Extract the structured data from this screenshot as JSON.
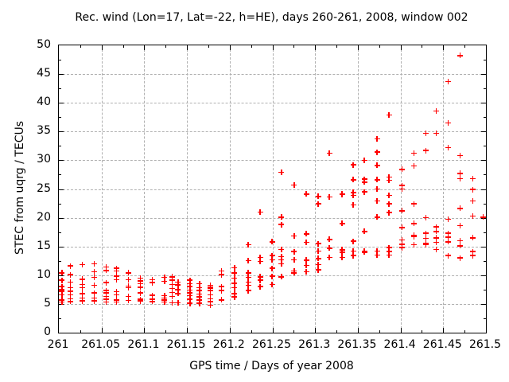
{
  "title": "Rec. wind (Lon=17, Lat=-22, h=HE), days 260-261, 2008, window 002",
  "chart_data": {
    "type": "scatter",
    "title": "Rec. wind (Lon=17, Lat=-22, h=HE), days 260-261, 2008, window 002",
    "xlabel": "GPS time / Days of year 2008",
    "ylabel": "STEC from uqrg / TECUs",
    "xlim": [
      261,
      261.5
    ],
    "ylim": [
      0,
      50
    ],
    "grid": true,
    "legend": "none",
    "marker": "plus",
    "marker_color": "#ff0000",
    "grid_color": "#b0b0b0",
    "border_color": "#000000",
    "xticks": [
      261,
      261.05,
      261.1,
      261.15,
      261.2,
      261.25,
      261.3,
      261.35,
      261.4,
      261.45,
      261.5
    ],
    "xtick_labels": [
      "261",
      "261.05",
      "261.1",
      "261.15",
      "261.2",
      "261.25",
      "261.3",
      "261.35",
      "261.4",
      "261.45",
      "261.5"
    ],
    "yticks": [
      0,
      5,
      10,
      15,
      20,
      25,
      30,
      35,
      40,
      45,
      50
    ],
    "ytick_labels": [
      "0",
      "5",
      "10",
      "15",
      "20",
      "25",
      "30",
      "35",
      "40",
      "45",
      "50"
    ],
    "minor_x_step": 0.025,
    "minor_y_step": 2.5,
    "points": [
      [
        261.005,
        10.2
      ],
      [
        261.005,
        8.9
      ],
      [
        261.005,
        7.8
      ],
      [
        261.005,
        7.3
      ],
      [
        261.005,
        7.0
      ],
      [
        261.005,
        6.4
      ],
      [
        261.005,
        5.5
      ],
      [
        261.005,
        5.1
      ],
      [
        261.015,
        11.4
      ],
      [
        261.015,
        9.9
      ],
      [
        261.015,
        8.6
      ],
      [
        261.015,
        7.6
      ],
      [
        261.015,
        7.0
      ],
      [
        261.015,
        6.4
      ],
      [
        261.015,
        5.7
      ],
      [
        261.015,
        5.2
      ],
      [
        261.029,
        11.6
      ],
      [
        261.029,
        9.1
      ],
      [
        261.029,
        8.2
      ],
      [
        261.029,
        7.6
      ],
      [
        261.029,
        6.6
      ],
      [
        261.029,
        5.8
      ],
      [
        261.029,
        5.3
      ],
      [
        261.043,
        11.8
      ],
      [
        261.043,
        10.4
      ],
      [
        261.043,
        9.4
      ],
      [
        261.043,
        8.0
      ],
      [
        261.043,
        6.7
      ],
      [
        261.043,
        5.8
      ],
      [
        261.043,
        5.3
      ],
      [
        261.057,
        11.2
      ],
      [
        261.057,
        10.6
      ],
      [
        261.057,
        8.5
      ],
      [
        261.057,
        7.1
      ],
      [
        261.057,
        6.7
      ],
      [
        261.057,
        6.1
      ],
      [
        261.057,
        5.6
      ],
      [
        261.057,
        5.1
      ],
      [
        261.069,
        11.0
      ],
      [
        261.069,
        10.5
      ],
      [
        261.069,
        9.6
      ],
      [
        261.069,
        9.0
      ],
      [
        261.069,
        6.9
      ],
      [
        261.069,
        6.4
      ],
      [
        261.069,
        5.5
      ],
      [
        261.069,
        5.1
      ],
      [
        261.083,
        10.2
      ],
      [
        261.083,
        9.0
      ],
      [
        261.083,
        7.9
      ],
      [
        261.083,
        7.6
      ],
      [
        261.083,
        6.1
      ],
      [
        261.083,
        5.4
      ],
      [
        261.097,
        9.3
      ],
      [
        261.097,
        8.8
      ],
      [
        261.097,
        8.3
      ],
      [
        261.097,
        7.7
      ],
      [
        261.097,
        6.7
      ],
      [
        261.097,
        5.6
      ],
      [
        261.097,
        5.3
      ],
      [
        261.111,
        9.0
      ],
      [
        261.111,
        8.5
      ],
      [
        261.111,
        6.3
      ],
      [
        261.111,
        5.6
      ],
      [
        261.111,
        5.2
      ],
      [
        261.125,
        9.4
      ],
      [
        261.125,
        8.7
      ],
      [
        261.125,
        6.2
      ],
      [
        261.125,
        5.8
      ],
      [
        261.125,
        5.5
      ],
      [
        261.125,
        5.1
      ],
      [
        261.134,
        9.5
      ],
      [
        261.134,
        8.9
      ],
      [
        261.134,
        8.2
      ],
      [
        261.134,
        7.5
      ],
      [
        261.134,
        6.8
      ],
      [
        261.134,
        6.1
      ],
      [
        261.134,
        5.0
      ],
      [
        261.141,
        8.6
      ],
      [
        261.141,
        8.1
      ],
      [
        261.141,
        7.3
      ],
      [
        261.141,
        6.6
      ],
      [
        261.141,
        5.0
      ],
      [
        261.155,
        8.9
      ],
      [
        261.155,
        8.3
      ],
      [
        261.155,
        7.8
      ],
      [
        261.155,
        7.2
      ],
      [
        261.155,
        6.7
      ],
      [
        261.155,
        6.2
      ],
      [
        261.155,
        5.6
      ],
      [
        261.155,
        4.9
      ],
      [
        261.166,
        8.3
      ],
      [
        261.166,
        7.6
      ],
      [
        261.166,
        7.1
      ],
      [
        261.166,
        6.5
      ],
      [
        261.166,
        6.0
      ],
      [
        261.166,
        5.5
      ],
      [
        261.166,
        4.9
      ],
      [
        261.179,
        8.0
      ],
      [
        261.179,
        7.7
      ],
      [
        261.179,
        7.5
      ],
      [
        261.179,
        7.1
      ],
      [
        261.179,
        6.4
      ],
      [
        261.179,
        5.7
      ],
      [
        261.179,
        5.2
      ],
      [
        261.179,
        4.6
      ],
      [
        261.192,
        10.5
      ],
      [
        261.192,
        9.9
      ],
      [
        261.192,
        7.8
      ],
      [
        261.192,
        7.1
      ],
      [
        261.192,
        5.5
      ],
      [
        261.207,
        11.1
      ],
      [
        261.207,
        10.2
      ],
      [
        261.207,
        9.3
      ],
      [
        261.207,
        8.4
      ],
      [
        261.207,
        7.6
      ],
      [
        261.207,
        6.6
      ],
      [
        261.207,
        6.0
      ],
      [
        261.223,
        15.1
      ],
      [
        261.223,
        12.3
      ],
      [
        261.223,
        10.2
      ],
      [
        261.223,
        9.4
      ],
      [
        261.223,
        8.6
      ],
      [
        261.223,
        8.0
      ],
      [
        261.223,
        7.1
      ],
      [
        261.237,
        20.8
      ],
      [
        261.237,
        12.9
      ],
      [
        261.237,
        12.2
      ],
      [
        261.237,
        9.5
      ],
      [
        261.237,
        8.9
      ],
      [
        261.237,
        7.8
      ],
      [
        261.251,
        15.6
      ],
      [
        261.251,
        13.2
      ],
      [
        261.251,
        12.5
      ],
      [
        261.251,
        11.0
      ],
      [
        261.251,
        9.6
      ],
      [
        261.251,
        8.2
      ],
      [
        261.262,
        27.7
      ],
      [
        261.262,
        19.9
      ],
      [
        261.262,
        18.6
      ],
      [
        261.262,
        14.3
      ],
      [
        261.262,
        13.0
      ],
      [
        261.262,
        12.5
      ],
      [
        261.262,
        11.8
      ],
      [
        261.262,
        9.5
      ],
      [
        261.277,
        25.5
      ],
      [
        261.277,
        16.6
      ],
      [
        261.277,
        13.9
      ],
      [
        261.277,
        12.5
      ],
      [
        261.277,
        10.5
      ],
      [
        261.277,
        10.2
      ],
      [
        261.291,
        23.9
      ],
      [
        261.291,
        17.0
      ],
      [
        261.291,
        15.5
      ],
      [
        261.291,
        12.4
      ],
      [
        261.291,
        11.5
      ],
      [
        261.291,
        10.4
      ],
      [
        261.305,
        23.5
      ],
      [
        261.305,
        22.2
      ],
      [
        261.305,
        15.3
      ],
      [
        261.305,
        14.0
      ],
      [
        261.305,
        12.7
      ],
      [
        261.305,
        11.6
      ],
      [
        261.305,
        10.7
      ],
      [
        261.318,
        31.0
      ],
      [
        261.318,
        23.4
      ],
      [
        261.318,
        16.0
      ],
      [
        261.318,
        14.5
      ],
      [
        261.318,
        12.9
      ],
      [
        261.333,
        23.9
      ],
      [
        261.333,
        23.8
      ],
      [
        261.333,
        18.8
      ],
      [
        261.333,
        14.2
      ],
      [
        261.333,
        14.1
      ],
      [
        261.333,
        13.8
      ],
      [
        261.333,
        12.9
      ],
      [
        261.346,
        29.0
      ],
      [
        261.346,
        26.4
      ],
      [
        261.346,
        24.2
      ],
      [
        261.346,
        23.7
      ],
      [
        261.346,
        22.0
      ],
      [
        261.346,
        15.7
      ],
      [
        261.346,
        14.0
      ],
      [
        261.346,
        13.2
      ],
      [
        261.359,
        29.8
      ],
      [
        261.359,
        26.5
      ],
      [
        261.359,
        26.0
      ],
      [
        261.359,
        24.3
      ],
      [
        261.359,
        17.4
      ],
      [
        261.359,
        14.0
      ],
      [
        261.359,
        13.8
      ],
      [
        261.374,
        33.5
      ],
      [
        261.374,
        31.2
      ],
      [
        261.374,
        28.9
      ],
      [
        261.374,
        26.4
      ],
      [
        261.374,
        24.8
      ],
      [
        261.374,
        22.7
      ],
      [
        261.374,
        19.9
      ],
      [
        261.374,
        14.0
      ],
      [
        261.374,
        13.3
      ],
      [
        261.388,
        37.7
      ],
      [
        261.388,
        26.9
      ],
      [
        261.388,
        26.3
      ],
      [
        261.388,
        23.7
      ],
      [
        261.388,
        22.2
      ],
      [
        261.388,
        20.7
      ],
      [
        261.388,
        14.6
      ],
      [
        261.388,
        13.9
      ],
      [
        261.388,
        13.3
      ],
      [
        261.403,
        28.2
      ],
      [
        261.403,
        25.4
      ],
      [
        261.403,
        24.8
      ],
      [
        261.403,
        21.0
      ],
      [
        261.403,
        18.1
      ],
      [
        261.403,
        15.9
      ],
      [
        261.403,
        15.2
      ],
      [
        261.403,
        14.6
      ],
      [
        261.417,
        31.0
      ],
      [
        261.417,
        28.8
      ],
      [
        261.417,
        22.2
      ],
      [
        261.417,
        18.8
      ],
      [
        261.417,
        16.7
      ],
      [
        261.417,
        16.5
      ],
      [
        261.417,
        15.1
      ],
      [
        261.431,
        34.5
      ],
      [
        261.431,
        31.5
      ],
      [
        261.431,
        19.8
      ],
      [
        261.431,
        17.1
      ],
      [
        261.431,
        16.2
      ],
      [
        261.431,
        15.3
      ],
      [
        261.431,
        15.1
      ],
      [
        261.443,
        38.4
      ],
      [
        261.443,
        34.5
      ],
      [
        261.443,
        18.2
      ],
      [
        261.443,
        17.4
      ],
      [
        261.443,
        16.3
      ],
      [
        261.443,
        15.5
      ],
      [
        261.443,
        14.3
      ],
      [
        261.457,
        43.5
      ],
      [
        261.457,
        36.3
      ],
      [
        261.457,
        32.0
      ],
      [
        261.457,
        19.5
      ],
      [
        261.457,
        17.1
      ],
      [
        261.457,
        16.4
      ],
      [
        261.457,
        15.6
      ],
      [
        261.457,
        13.2
      ],
      [
        261.471,
        48.0
      ],
      [
        261.471,
        30.6
      ],
      [
        261.471,
        27.5
      ],
      [
        261.471,
        26.6
      ],
      [
        261.471,
        21.4
      ],
      [
        261.471,
        18.4
      ],
      [
        261.471,
        15.8
      ],
      [
        261.471,
        14.9
      ],
      [
        261.471,
        12.8
      ],
      [
        261.486,
        26.6
      ],
      [
        261.486,
        24.7
      ],
      [
        261.486,
        22.7
      ],
      [
        261.486,
        20.1
      ],
      [
        261.486,
        16.3
      ],
      [
        261.486,
        13.9
      ],
      [
        261.486,
        13.2
      ],
      [
        261.498,
        19.9
      ]
    ]
  }
}
